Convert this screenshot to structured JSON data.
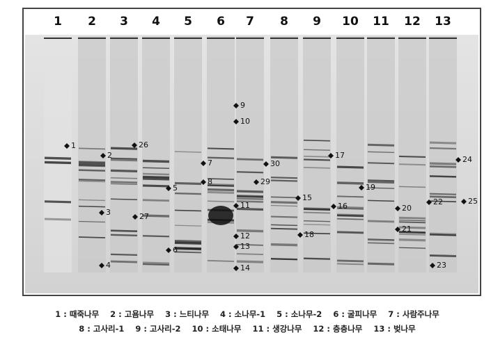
{
  "lanes": [
    "1",
    "2",
    "3",
    "4",
    "5",
    "6",
    "7",
    "8",
    "9",
    "10",
    "11",
    "12",
    "13"
  ],
  "band_labels": [
    "1",
    "2",
    "3",
    "4",
    "5",
    "6",
    "7",
    "8",
    "9",
    "10",
    "11",
    "12",
    "13",
    "14",
    "15",
    "16",
    "17",
    "18",
    "19",
    "20",
    "21",
    "22",
    "23",
    "24",
    "25",
    "26",
    "27",
    "29",
    "30"
  ],
  "legend": [
    "1 : 때죽나무    2 : 고욤나무    3 : 느티나무    4 : 소나무-1    5 : 소나무-2    6 : 굴피나무    7 : 사람주나무",
    "8 : 고사리-1    9 : 고사리-2    10 : 소태나무    11 : 생강나무    12 : 층층나무    13 : 벚나무"
  ]
}
